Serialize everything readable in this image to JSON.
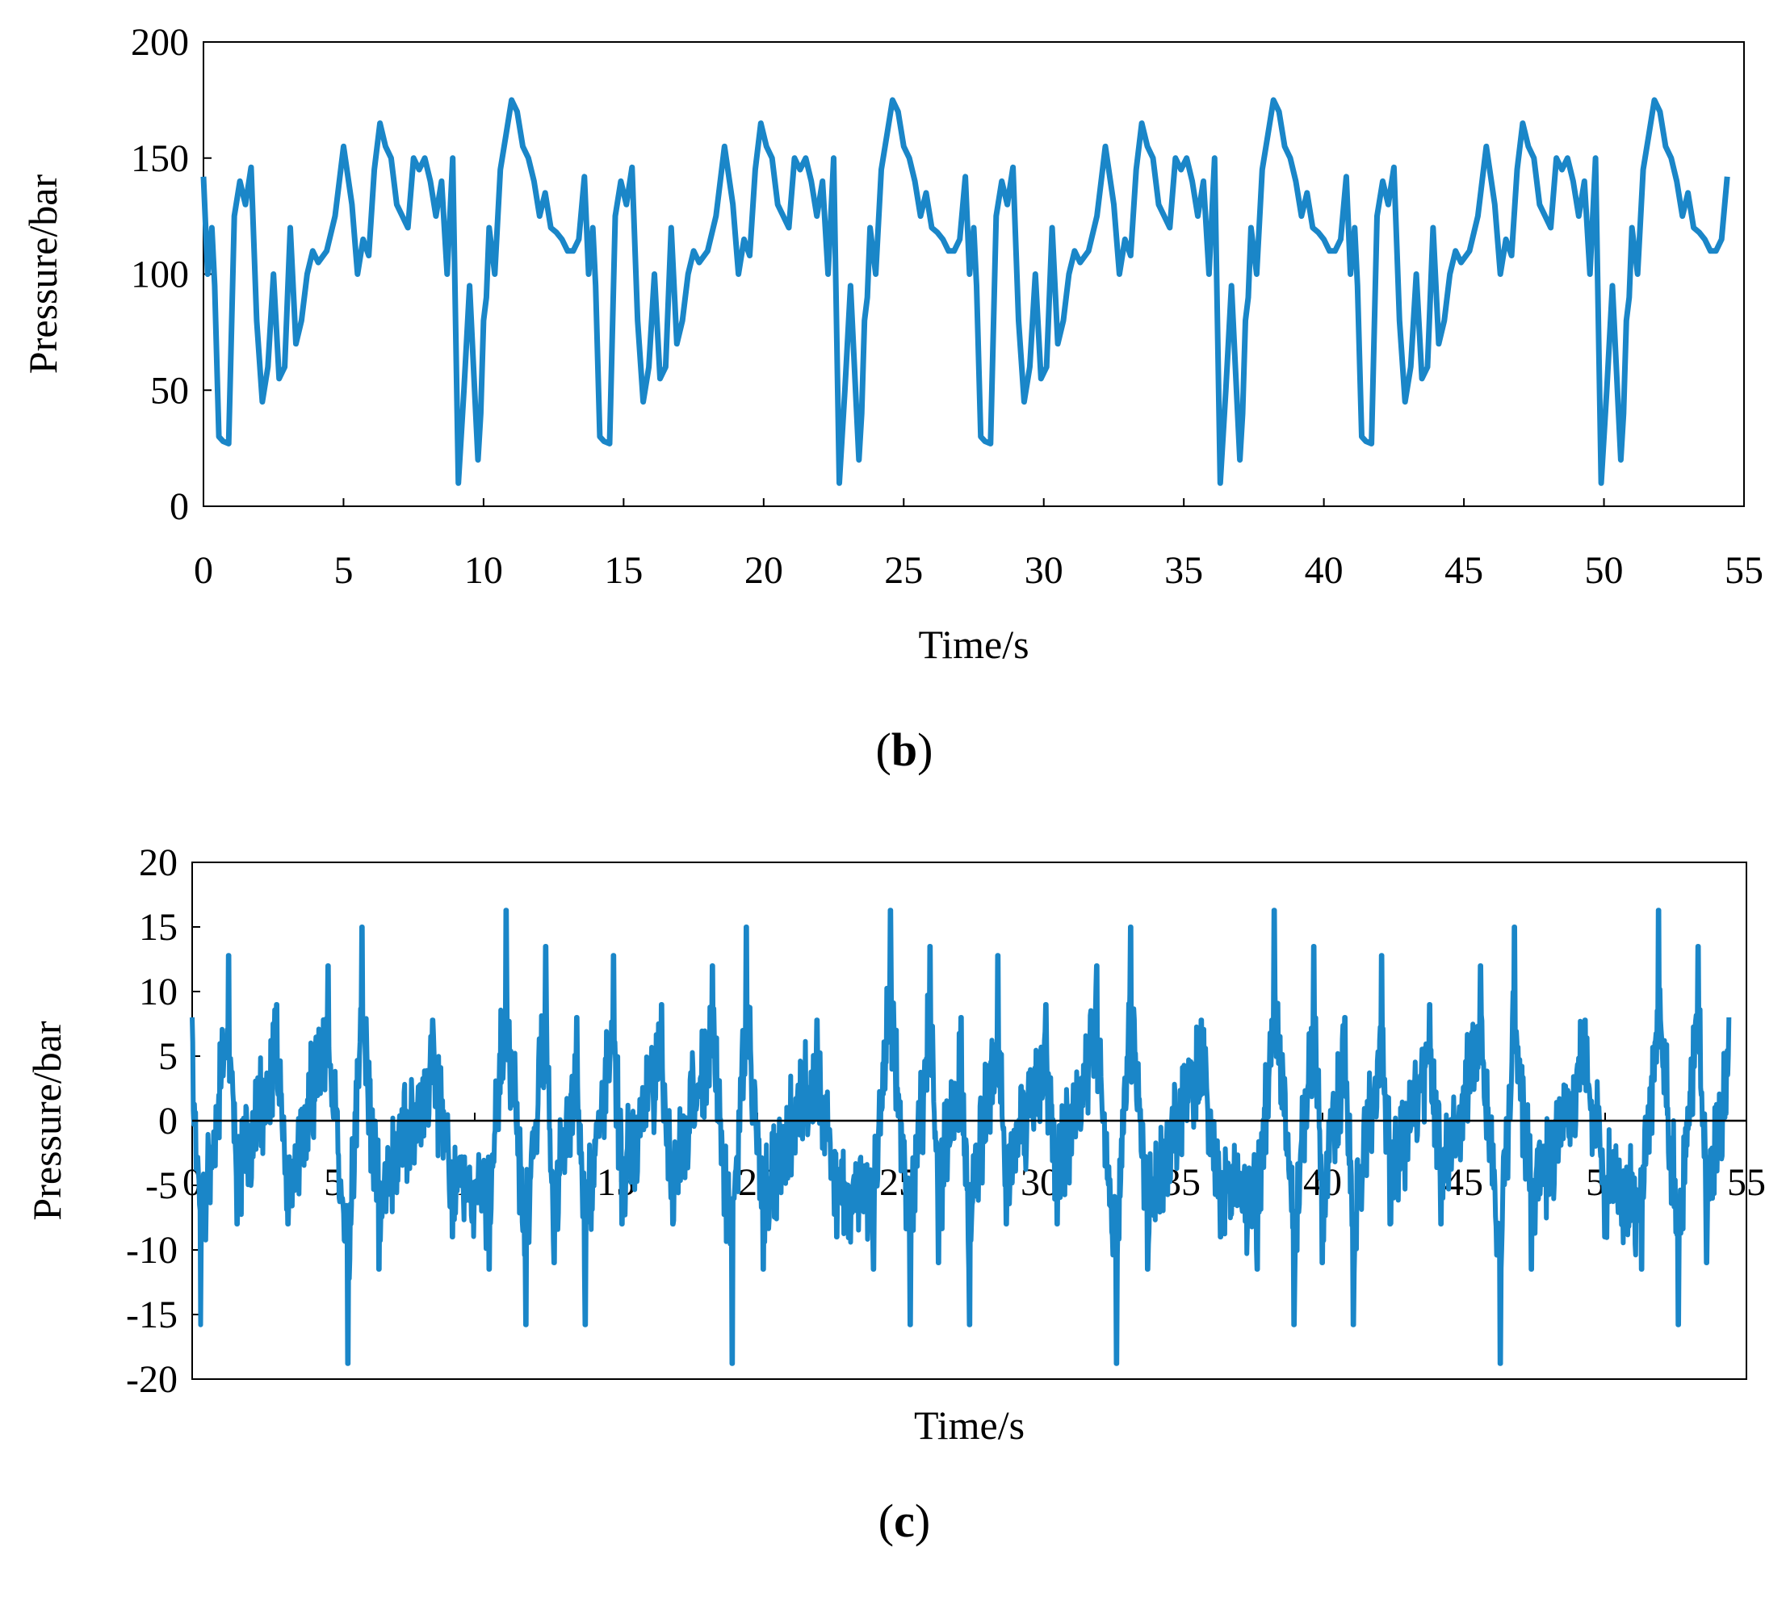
{
  "chart_data": [
    {
      "type": "line",
      "panel": "(b)",
      "panel_letter": "b",
      "xlabel": "Time/s",
      "ylabel": "Pressure/bar",
      "xlim": [
        0,
        55
      ],
      "ylim": [
        0,
        200
      ],
      "xticks": [
        0,
        5,
        10,
        15,
        20,
        25,
        30,
        35,
        40,
        45,
        50,
        55
      ],
      "yticks": [
        0,
        50,
        100,
        150,
        200
      ],
      "grid": false,
      "line_color": "#1a86c8",
      "series": [
        {
          "period": 13.6,
          "t_end": 54.4,
          "x": [
            0,
            0.15,
            0.3,
            0.4,
            0.55,
            0.7,
            0.9,
            1.1,
            1.3,
            1.5,
            1.7,
            1.9,
            2.1,
            2.3,
            2.5,
            2.7,
            2.9,
            3.1,
            3.3,
            3.5,
            3.7,
            3.9,
            4.1,
            4.4,
            4.7,
            5.0,
            5.3,
            5.5,
            5.7,
            5.9,
            6.1,
            6.3,
            6.5,
            6.7,
            6.9,
            7.1,
            7.3,
            7.5,
            7.7,
            7.9,
            8.1,
            8.3,
            8.5,
            8.7,
            8.9,
            9.1,
            9.3,
            9.5,
            9.7,
            9.8,
            9.9,
            10.0,
            10.1,
            10.2,
            10.4,
            10.6,
            10.8,
            11.0,
            11.2,
            11.4,
            11.6,
            11.8,
            12.0,
            12.2,
            12.4,
            12.6,
            12.8,
            13.0,
            13.2,
            13.4,
            13.6
          ],
          "y": [
            142,
            100,
            120,
            95,
            30,
            28,
            27,
            125,
            140,
            130,
            146,
            80,
            45,
            60,
            100,
            55,
            60,
            120,
            70,
            80,
            100,
            110,
            105,
            110,
            125,
            155,
            130,
            100,
            115,
            108,
            145,
            165,
            155,
            150,
            130,
            125,
            120,
            150,
            145,
            150,
            140,
            125,
            140,
            100,
            150,
            10,
            50,
            95,
            45,
            20,
            40,
            80,
            90,
            120,
            100,
            145,
            160,
            175,
            170,
            155,
            150,
            140,
            125,
            135,
            120,
            118,
            115,
            110,
            110,
            115,
            142
          ]
        }
      ]
    },
    {
      "type": "line",
      "panel": "(c)",
      "panel_letter": "c",
      "xlabel": "Time/s",
      "ylabel": "Pressure/bar",
      "xlim": [
        0,
        55
      ],
      "ylim": [
        -20,
        20
      ],
      "xticks": [
        0,
        5,
        10,
        15,
        20,
        25,
        30,
        35,
        40,
        45,
        50,
        55
      ],
      "yticks": [
        -20,
        -15,
        -10,
        -5,
        0,
        5,
        10,
        15,
        20
      ],
      "grid": false,
      "zero_line": true,
      "line_color": "#1a86c8",
      "series": [
        {
          "period": 13.6,
          "t_end": 54.4,
          "peaks": [
            {
              "t": 0.0,
              "v": 8
            },
            {
              "t": 0.3,
              "v": -15.8
            },
            {
              "t": 1.3,
              "v": 12.8
            },
            {
              "t": 1.6,
              "v": -8
            },
            {
              "t": 3.0,
              "v": 9
            },
            {
              "t": 3.4,
              "v": -8
            },
            {
              "t": 4.8,
              "v": 12
            },
            {
              "t": 5.5,
              "v": -18.8
            },
            {
              "t": 6.0,
              "v": 15
            },
            {
              "t": 6.6,
              "v": -11.5
            },
            {
              "t": 8.5,
              "v": 7.8
            },
            {
              "t": 9.2,
              "v": -9
            },
            {
              "t": 10.5,
              "v": -11.5
            },
            {
              "t": 11.1,
              "v": 16.3
            },
            {
              "t": 11.8,
              "v": -15.8
            },
            {
              "t": 12.5,
              "v": 13.5
            },
            {
              "t": 12.8,
              "v": -11
            }
          ],
          "noise_amplitude": 4.5
        }
      ]
    }
  ]
}
